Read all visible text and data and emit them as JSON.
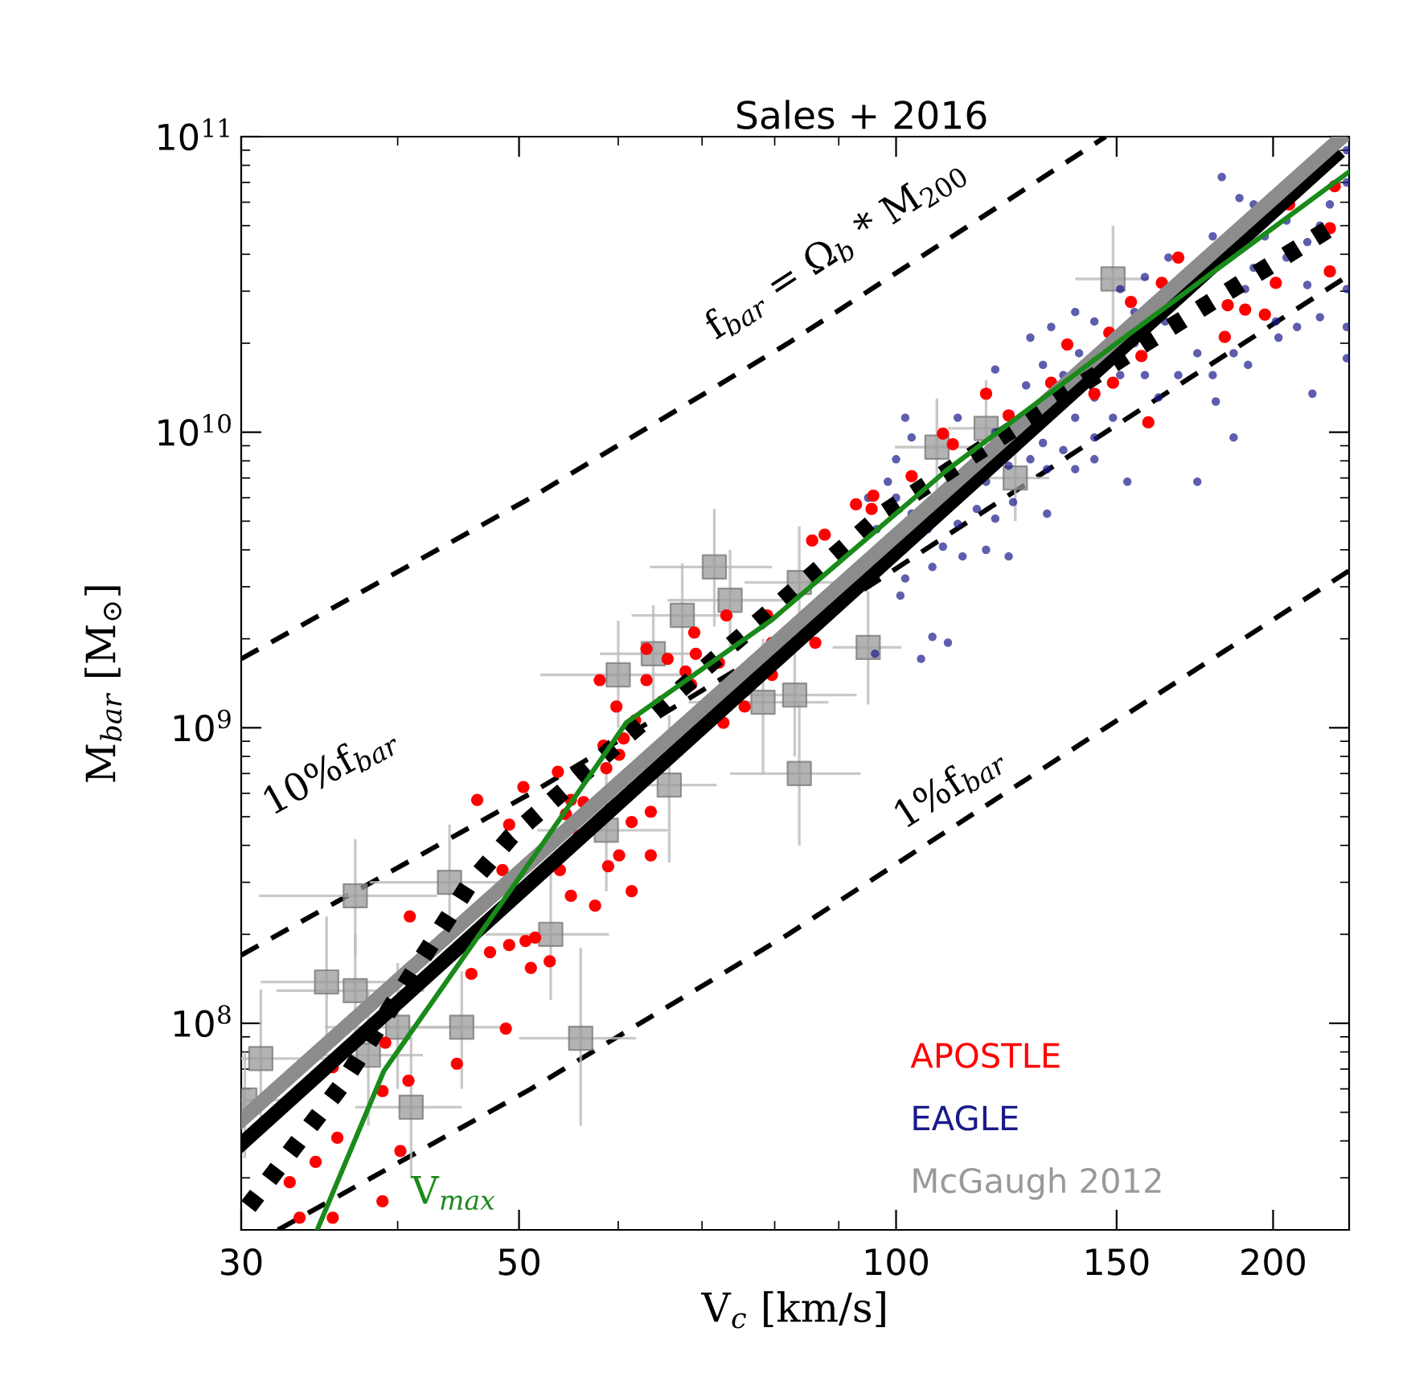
{
  "chart_data": {
    "type": "scatter",
    "title": "Sales + 2016",
    "xlabel": "V$_{c}$ [km/s]",
    "ylabel": "M$_{bar}$ [M$_{⊙}$]",
    "log": "xy",
    "xlim": [
      30,
      230
    ],
    "ylim": [
      20000000.0,
      100000000000.0
    ],
    "xticks": [
      30,
      50,
      100,
      150,
      200
    ],
    "yticks": [
      {
        "value": 100000000.0,
        "label": "10$^{8}$"
      },
      {
        "value": 1000000000.0,
        "label": "10$^{9}$"
      },
      {
        "value": 10000000000.0,
        "label": "10$^{10}$"
      },
      {
        "value": 100000000000.0,
        "label": "10$^{11}$"
      }
    ],
    "grid": false,
    "legend": "bottom right",
    "annotations": [
      "f$_{bar}$ = Ω$_{b}$ * M$_{200}$",
      "10%f$_{bar}$",
      "1%f$_{bar}$"
    ],
    "series": [
      {
        "type": "line",
        "color": "#000000",
        "line_style": "dashed",
        "marker": "none",
        "x": [
          30,
          51.1,
          82,
          147
        ],
        "values": [
          1710000000.0,
          6000000000.0,
          20000000000.0,
          100000000000.0
        ]
      },
      {
        "type": "line",
        "color": "#000000",
        "line_style": "dashed",
        "marker": "none",
        "x": [
          30,
          51.1,
          82,
          147,
          230
        ],
        "values": [
          170000000.0,
          600000000.0,
          2000000000.0,
          10000000000.0,
          34000000000.0
        ]
      },
      {
        "type": "line",
        "color": "#000000",
        "line_style": "dashed",
        "marker": "none",
        "x": [
          32.1,
          51.1,
          82,
          147,
          230
        ],
        "values": [
          20000000.0,
          60000000.0,
          200000000.0,
          1000000000.0,
          3400000000.0
        ]
      },
      {
        "name": "APOSTLE",
        "color": "#ff0000",
        "marker": "circle",
        "x": [
          46.3,
          40.9,
          45.8,
          49.1,
          50.6,
          51.5,
          51.1,
          52.9,
          47.4,
          48.8,
          44.6,
          39.1,
          35.5,
          38.9,
          40.8,
          35.8,
          34.4,
          40.2,
          32.8,
          38.9,
          35.5,
          33.4,
          48.5,
          49.1,
          50.4,
          53.7,
          55.0,
          56.3,
          54.5,
          55.8,
          53.9,
          55.0,
          57.5,
          58.9,
          60.1,
          61.5,
          63.7,
          63.7,
          61.5,
          58.7,
          60.1,
          58.4,
          60.6,
          59.8,
          61.9,
          58.0,
          63.2,
          63.2,
          65.7,
          67.9,
          68.6,
          72.8,
          72.2,
          75.7,
          79.6,
          69.2,
          69.0,
          73.2,
          78.9,
          85.7,
          87.7,
          92.9,
          95.6,
          95.9,
          102.9,
          111,
          109,
          118,
          123,
          133,
          137,
          148,
          144,
          149,
          159,
          157,
          154,
          163,
          168,
          184,
          190,
          197,
          201,
          183,
          222,
          222,
          206,
          224,
          79.6,
          86.2
        ],
        "values": [
          570000000.0,
          230000000.0,
          147000000.0,
          184000000.0,
          190000000.0,
          195000000.0,
          154000000.0,
          162000000.0,
          174000000.0,
          96000000.0,
          73000000.0,
          86000000.0,
          71000000.0,
          59000000.0,
          64000000.0,
          41000000.0,
          34000000.0,
          37000000.0,
          29000000.0,
          25000000.0,
          22000000.0,
          22000000.0,
          330000000.0,
          470000000.0,
          630000000.0,
          710000000.0,
          570000000.0,
          560000000.0,
          510000000.0,
          430000000.0,
          330000000.0,
          270000000.0,
          250000000.0,
          340000000.0,
          370000000.0,
          280000000.0,
          370000000.0,
          520000000.0,
          480000000.0,
          730000000.0,
          810000000.0,
          870000000.0,
          920000000.0,
          1180000000.0,
          1060000000.0,
          1450000000.0,
          1450000000.0,
          1850000000.0,
          1710000000.0,
          1550000000.0,
          1400000000.0,
          1040000000.0,
          1660000000.0,
          1180000000.0,
          1510000000.0,
          1780000000.0,
          2100000000.0,
          2400000000.0,
          2400000000.0,
          4300000000.0,
          4500000000.0,
          5700000000.0,
          5500000000.0,
          6100000000.0,
          7100000000.0,
          9100000000.0,
          9900000000.0,
          13500000000.0,
          11400000000.0,
          14700000000.0,
          19800000000.0,
          21700000000.0,
          13500000000.0,
          14700000000.0,
          10800000000.0,
          18100000000.0,
          27600000000.0,
          32000000000.0,
          39000000000.0,
          26900000000.0,
          26000000000.0,
          25000000000.0,
          32000000000.0,
          21000000000.0,
          35000000000.0,
          49000000000.0,
          59000000000.0,
          68000000000.0,
          1940000000.0,
          1940000000.0
        ]
      },
      {
        "name": "EAGLE",
        "color": "#1a1a8c",
        "marker": "circle",
        "x": [
          104.7,
          106.9,
          110,
          100.8,
          101.7,
          98.5,
          100,
          102.9,
          106,
          109,
          113,
          118,
          123,
          106.9,
          112,
          116,
          120,
          124,
          118,
          112,
          120,
          131,
          136,
          132,
          128,
          139,
          144,
          149,
          151,
          140,
          136,
          131,
          128,
          133,
          139,
          144,
          155,
          158,
          162,
          168,
          174,
          179,
          186,
          191,
          186,
          174,
          215,
          201,
          209,
          218,
          229,
          229,
          229,
          213,
          205,
          213,
          222,
          229,
          229,
          205,
          197,
          193,
          190,
          179,
          165,
          158,
          155,
          151,
          193,
          188,
          164,
          139,
          144,
          123,
          127,
          144,
          96.2,
          100,
          102.9,
          101.7,
          96.5,
          95,
          120,
          182,
          218,
          202,
          180,
          153,
          132
        ],
        "values": [
          1710000000.0,
          2030000000.0,
          1940000000.0,
          2800000000.0,
          3200000000.0,
          6800000000.0,
          6000000000.0,
          5300000000.0,
          4700000000.0,
          4100000000.0,
          3800000000.0,
          4000000000.0,
          3800000000.0,
          3500000000.0,
          4900000000.0,
          5500000000.0,
          5100000000.0,
          5800000000.0,
          6800000000.0,
          11200000000.0,
          10000000000.0,
          9200000000.0,
          8700000000.0,
          7500000000.0,
          8100000000.0,
          11200000000.0,
          13100000000.0,
          11200000000.0,
          15600000000.0,
          18500000000.0,
          15600000000.0,
          16900000000.0,
          20900000000.0,
          22700000000.0,
          25500000000.0,
          23700000000.0,
          20000000000.0,
          15600000000.0,
          13100000000.0,
          15600000000.0,
          18500000000.0,
          15600000000.0,
          18500000000.0,
          16900000000.0,
          9600000000.0,
          6800000000.0,
          13500000000.0,
          23700000000.0,
          22700000000.0,
          24500000000.0,
          30500000000.0,
          22700000000.0,
          17800000000.0,
          31500000000.0,
          39000000000.0,
          44000000000.0,
          59000000000.0,
          70000000000.0,
          90000000000.0,
          52000000000.0,
          46000000000.0,
          36000000000.0,
          30500000000.0,
          46000000000.0,
          39000000000.0,
          33500000000.0,
          25500000000.0,
          30500000000.0,
          59000000000.0,
          62000000000.0,
          23700000000.0,
          7500000000.0,
          8100000000.0,
          7700000000.0,
          14400000000.0,
          9600000000.0,
          1780000000.0,
          8100000000.0,
          9600000000.0,
          11200000000.0,
          4700000000.0,
          6000000000.0,
          16300000000.0,
          73000000000.0,
          50000000000.0,
          20900000000.0,
          12700000000.0,
          6800000000.0,
          5300000000.0
        ]
      },
      {
        "name": "McGaugh 2012",
        "color": "#999999",
        "marker": "square",
        "x": [
          30.2,
          31.1,
          35.1,
          37.0,
          37.0,
          44.0,
          37.9,
          40.0,
          41.0,
          45.0,
          53.0,
          56.0,
          58.7,
          65.9,
          78.3,
          60.0,
          64.0,
          71.6,
          73.7,
          67.5,
          149,
          107.8,
          118,
          124.5,
          83.7,
          95.0,
          83.0,
          83.7
        ],
        "values": [
          55000000.0,
          76000000.0,
          138000000.0,
          129000000.0,
          270000000.0,
          300000000.0,
          78000000.0,
          97000000.0,
          52000000.0,
          97000000.0,
          200000000.0,
          89000000.0,
          450000000.0,
          640000000.0,
          1220000000.0,
          1510000000.0,
          1780000000.0,
          3500000000.0,
          2700000000.0,
          2400000000.0,
          33000000000.0,
          8900000000.0,
          10300000000.0,
          7000000000.0,
          3100000000.0,
          1870000000.0,
          1290000000.0,
          700000000.0
        ],
        "xerrors": [
          3,
          4,
          4,
          5,
          6,
          6,
          4,
          5,
          4,
          4,
          6,
          6,
          7,
          6,
          10,
          8,
          6,
          8,
          8,
          6,
          10,
          8,
          8,
          8,
          8,
          6,
          10,
          10
        ],
        "errors": [
          [
            35000000.0,
            80000000.0
          ],
          [
            45000000.0,
            130000000.0
          ],
          [
            80000000.0,
            230000000.0
          ],
          [
            80000000.0,
            200000000.0
          ],
          [
            170000000.0,
            420000000.0
          ],
          [
            190000000.0,
            470000000.0
          ],
          [
            45000000.0,
            130000000.0
          ],
          [
            60000000.0,
            160000000.0
          ],
          [
            30000000.0,
            90000000.0
          ],
          [
            60000000.0,
            150000000.0
          ],
          [
            120000000.0,
            320000000.0
          ],
          [
            45000000.0,
            180000000.0
          ],
          [
            280000000.0,
            700000000.0
          ],
          [
            350000000.0,
            1100000000.0
          ],
          [
            700000000.0,
            2000000000.0
          ],
          [
            1000000000.0,
            2300000000.0
          ],
          [
            1200000000.0,
            2600000000.0
          ],
          [
            2200000000.0,
            5500000000.0
          ],
          [
            1800000000.0,
            4000000000.0
          ],
          [
            1600000000.0,
            3600000000.0
          ],
          [
            22000000000.0,
            50000000000.0
          ],
          [
            6000000000.0,
            13000000000.0
          ],
          [
            7000000000.0,
            15000000000.0
          ],
          [
            5000000000.0,
            10000000000.0
          ],
          [
            2000000000.0,
            4800000000.0
          ],
          [
            1200000000.0,
            2900000000.0
          ],
          [
            800000000.0,
            2000000000.0
          ],
          [
            400000000.0,
            1200000000.0
          ]
        ]
      },
      {
        "type": "line",
        "color": "#000000",
        "line_style": "solid",
        "marker": "none",
        "x": [
          30,
          224
        ],
        "values": [
          39000000.0,
          86000000000.0
        ]
      },
      {
        "type": "line",
        "color": "#8c8c8c",
        "line_style": "solid",
        "marker": "none",
        "x": [
          30,
          226
        ],
        "values": [
          47000000.0,
          98000000000.0
        ]
      },
      {
        "type": "line",
        "color": "#000000",
        "line_style": "dotted",
        "marker": "none",
        "x": [
          30.4,
          36.0,
          45.5,
          49.3,
          97.6,
          158,
          222
        ],
        "values": [
          24000000.0,
          61000000.0,
          290000000.0,
          430000000.0,
          5300000000.0,
          20000000000.0,
          49000000000.0
        ]
      },
      {
        "name": "V$_{max}$",
        "type": "line",
        "color": "#1a8a1a",
        "line_style": "solid",
        "marker": "none",
        "x": [
          34.5,
          39.0,
          50,
          60.9,
          79.4,
          109.6,
          150,
          230
        ],
        "values": [
          20000000.0,
          69000000.0,
          310000000.0,
          1040000000.0,
          2300000000.0,
          7400000000.0,
          20000000000.0,
          76000000000.0
        ]
      }
    ]
  }
}
